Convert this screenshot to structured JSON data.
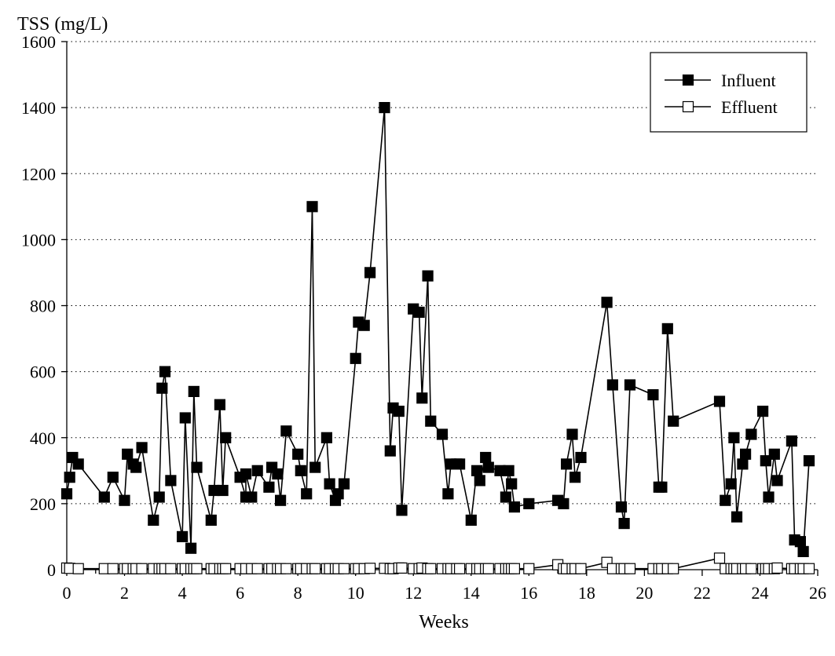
{
  "chart_data": {
    "type": "line",
    "ylabel": "TSS (mg/L)",
    "xlabel": "Weeks",
    "xlim": [
      0,
      26
    ],
    "ylim": [
      0,
      1600
    ],
    "x_ticks": [
      "0",
      "2",
      "4",
      "6",
      "8",
      "10",
      "12",
      "14",
      "16",
      "18",
      "20",
      "22",
      "24",
      "26"
    ],
    "y_ticks": [
      "0",
      "200",
      "400",
      "600",
      "800",
      "1000",
      "1200",
      "1400",
      "1600"
    ],
    "grid": "horizontal dotted",
    "legend_position": "top-right",
    "series": [
      {
        "name": "Influent",
        "marker": "filled-square",
        "color": "#000000",
        "points": [
          [
            0.0,
            230
          ],
          [
            0.1,
            280
          ],
          [
            0.2,
            340
          ],
          [
            0.4,
            320
          ],
          [
            1.3,
            220
          ],
          [
            1.6,
            280
          ],
          [
            2.0,
            210
          ],
          [
            2.1,
            350
          ],
          [
            2.3,
            320
          ],
          [
            2.4,
            310
          ],
          [
            2.6,
            370
          ],
          [
            3.0,
            150
          ],
          [
            3.2,
            220
          ],
          [
            3.3,
            550
          ],
          [
            3.4,
            600
          ],
          [
            3.6,
            270
          ],
          [
            4.0,
            100
          ],
          [
            4.1,
            460
          ],
          [
            4.3,
            65
          ],
          [
            4.4,
            540
          ],
          [
            4.5,
            310
          ],
          [
            5.0,
            150
          ],
          [
            5.1,
            240
          ],
          [
            5.3,
            500
          ],
          [
            5.4,
            240
          ],
          [
            5.5,
            400
          ],
          [
            6.0,
            280
          ],
          [
            6.2,
            220
          ],
          [
            6.2,
            290
          ],
          [
            6.4,
            220
          ],
          [
            6.6,
            300
          ],
          [
            7.0,
            250
          ],
          [
            7.1,
            310
          ],
          [
            7.3,
            290
          ],
          [
            7.4,
            210
          ],
          [
            7.6,
            420
          ],
          [
            8.0,
            350
          ],
          [
            8.1,
            300
          ],
          [
            8.3,
            230
          ],
          [
            8.5,
            1100
          ],
          [
            8.6,
            310
          ],
          [
            9.0,
            400
          ],
          [
            9.1,
            260
          ],
          [
            9.3,
            210
          ],
          [
            9.4,
            230
          ],
          [
            9.6,
            260
          ],
          [
            10.0,
            640
          ],
          [
            10.1,
            750
          ],
          [
            10.3,
            740
          ],
          [
            10.5,
            900
          ],
          [
            11.0,
            1400
          ],
          [
            11.2,
            360
          ],
          [
            11.3,
            490
          ],
          [
            11.5,
            480
          ],
          [
            11.6,
            180
          ],
          [
            12.0,
            790
          ],
          [
            12.2,
            780
          ],
          [
            12.3,
            520
          ],
          [
            12.5,
            890
          ],
          [
            12.6,
            450
          ],
          [
            13.0,
            410
          ],
          [
            13.2,
            230
          ],
          [
            13.3,
            320
          ],
          [
            13.5,
            320
          ],
          [
            13.6,
            320
          ],
          [
            14.0,
            150
          ],
          [
            14.2,
            300
          ],
          [
            14.3,
            270
          ],
          [
            14.5,
            340
          ],
          [
            14.6,
            310
          ],
          [
            15.0,
            300
          ],
          [
            15.2,
            220
          ],
          [
            15.3,
            300
          ],
          [
            15.4,
            260
          ],
          [
            15.5,
            190
          ],
          [
            16.0,
            200
          ],
          [
            17.0,
            210
          ],
          [
            17.2,
            200
          ],
          [
            17.3,
            320
          ],
          [
            17.5,
            410
          ],
          [
            17.6,
            280
          ],
          [
            17.8,
            340
          ],
          [
            18.7,
            810
          ],
          [
            18.9,
            560
          ],
          [
            19.2,
            190
          ],
          [
            19.3,
            140
          ],
          [
            19.5,
            560
          ],
          [
            20.3,
            530
          ],
          [
            20.5,
            250
          ],
          [
            20.6,
            250
          ],
          [
            20.8,
            730
          ],
          [
            21.0,
            450
          ],
          [
            22.6,
            510
          ],
          [
            22.8,
            210
          ],
          [
            23.0,
            260
          ],
          [
            23.1,
            400
          ],
          [
            23.2,
            160
          ],
          [
            23.4,
            320
          ],
          [
            23.5,
            350
          ],
          [
            23.7,
            410
          ],
          [
            24.1,
            480
          ],
          [
            24.2,
            330
          ],
          [
            24.3,
            220
          ],
          [
            24.5,
            350
          ],
          [
            24.6,
            270
          ],
          [
            25.1,
            390
          ],
          [
            25.2,
            90
          ],
          [
            25.4,
            85
          ],
          [
            25.5,
            55
          ],
          [
            25.7,
            330
          ]
        ]
      },
      {
        "name": "Effluent",
        "marker": "open-square",
        "color": "#000000",
        "points": [
          [
            0.0,
            5
          ],
          [
            0.1,
            4
          ],
          [
            0.4,
            3
          ],
          [
            1.3,
            3
          ],
          [
            1.6,
            3
          ],
          [
            2.0,
            3
          ],
          [
            2.1,
            3
          ],
          [
            2.3,
            3
          ],
          [
            2.4,
            3
          ],
          [
            2.6,
            3
          ],
          [
            3.0,
            3
          ],
          [
            3.2,
            3
          ],
          [
            3.3,
            3
          ],
          [
            3.4,
            3
          ],
          [
            3.6,
            3
          ],
          [
            4.0,
            3
          ],
          [
            4.1,
            3
          ],
          [
            4.3,
            3
          ],
          [
            4.4,
            3
          ],
          [
            4.5,
            3
          ],
          [
            5.0,
            3
          ],
          [
            5.1,
            3
          ],
          [
            5.3,
            3
          ],
          [
            5.4,
            3
          ],
          [
            5.5,
            3
          ],
          [
            6.0,
            3
          ],
          [
            6.2,
            3
          ],
          [
            6.4,
            3
          ],
          [
            6.6,
            3
          ],
          [
            7.0,
            3
          ],
          [
            7.1,
            3
          ],
          [
            7.3,
            3
          ],
          [
            7.4,
            3
          ],
          [
            7.6,
            3
          ],
          [
            8.0,
            3
          ],
          [
            8.1,
            3
          ],
          [
            8.3,
            3
          ],
          [
            8.5,
            3
          ],
          [
            8.6,
            3
          ],
          [
            9.0,
            3
          ],
          [
            9.1,
            3
          ],
          [
            9.3,
            3
          ],
          [
            9.4,
            3
          ],
          [
            9.6,
            3
          ],
          [
            10.0,
            3
          ],
          [
            10.1,
            3
          ],
          [
            10.3,
            3
          ],
          [
            10.5,
            4
          ],
          [
            11.0,
            4
          ],
          [
            11.2,
            3
          ],
          [
            11.3,
            3
          ],
          [
            11.5,
            5
          ],
          [
            11.6,
            5
          ],
          [
            12.0,
            3
          ],
          [
            12.2,
            3
          ],
          [
            12.3,
            5
          ],
          [
            12.5,
            3
          ],
          [
            12.6,
            3
          ],
          [
            13.0,
            3
          ],
          [
            13.2,
            3
          ],
          [
            13.3,
            3
          ],
          [
            13.5,
            3
          ],
          [
            13.6,
            3
          ],
          [
            14.0,
            3
          ],
          [
            14.2,
            3
          ],
          [
            14.3,
            3
          ],
          [
            14.5,
            3
          ],
          [
            14.6,
            3
          ],
          [
            15.0,
            3
          ],
          [
            15.2,
            3
          ],
          [
            15.3,
            3
          ],
          [
            15.4,
            3
          ],
          [
            15.5,
            3
          ],
          [
            16.0,
            3
          ],
          [
            17.0,
            15
          ],
          [
            17.2,
            3
          ],
          [
            17.3,
            3
          ],
          [
            17.5,
            3
          ],
          [
            17.6,
            3
          ],
          [
            17.8,
            3
          ],
          [
            18.7,
            22
          ],
          [
            18.9,
            3
          ],
          [
            19.2,
            3
          ],
          [
            19.3,
            3
          ],
          [
            19.5,
            3
          ],
          [
            20.3,
            3
          ],
          [
            20.5,
            3
          ],
          [
            20.6,
            3
          ],
          [
            20.8,
            3
          ],
          [
            21.0,
            3
          ],
          [
            22.6,
            35
          ],
          [
            22.8,
            3
          ],
          [
            23.0,
            3
          ],
          [
            23.1,
            3
          ],
          [
            23.2,
            3
          ],
          [
            23.4,
            3
          ],
          [
            23.5,
            3
          ],
          [
            23.7,
            3
          ],
          [
            24.1,
            3
          ],
          [
            24.2,
            3
          ],
          [
            24.3,
            3
          ],
          [
            24.5,
            3
          ],
          [
            24.6,
            5
          ],
          [
            25.1,
            3
          ],
          [
            25.2,
            3
          ],
          [
            25.4,
            3
          ],
          [
            25.5,
            3
          ],
          [
            25.7,
            3
          ]
        ]
      }
    ]
  }
}
